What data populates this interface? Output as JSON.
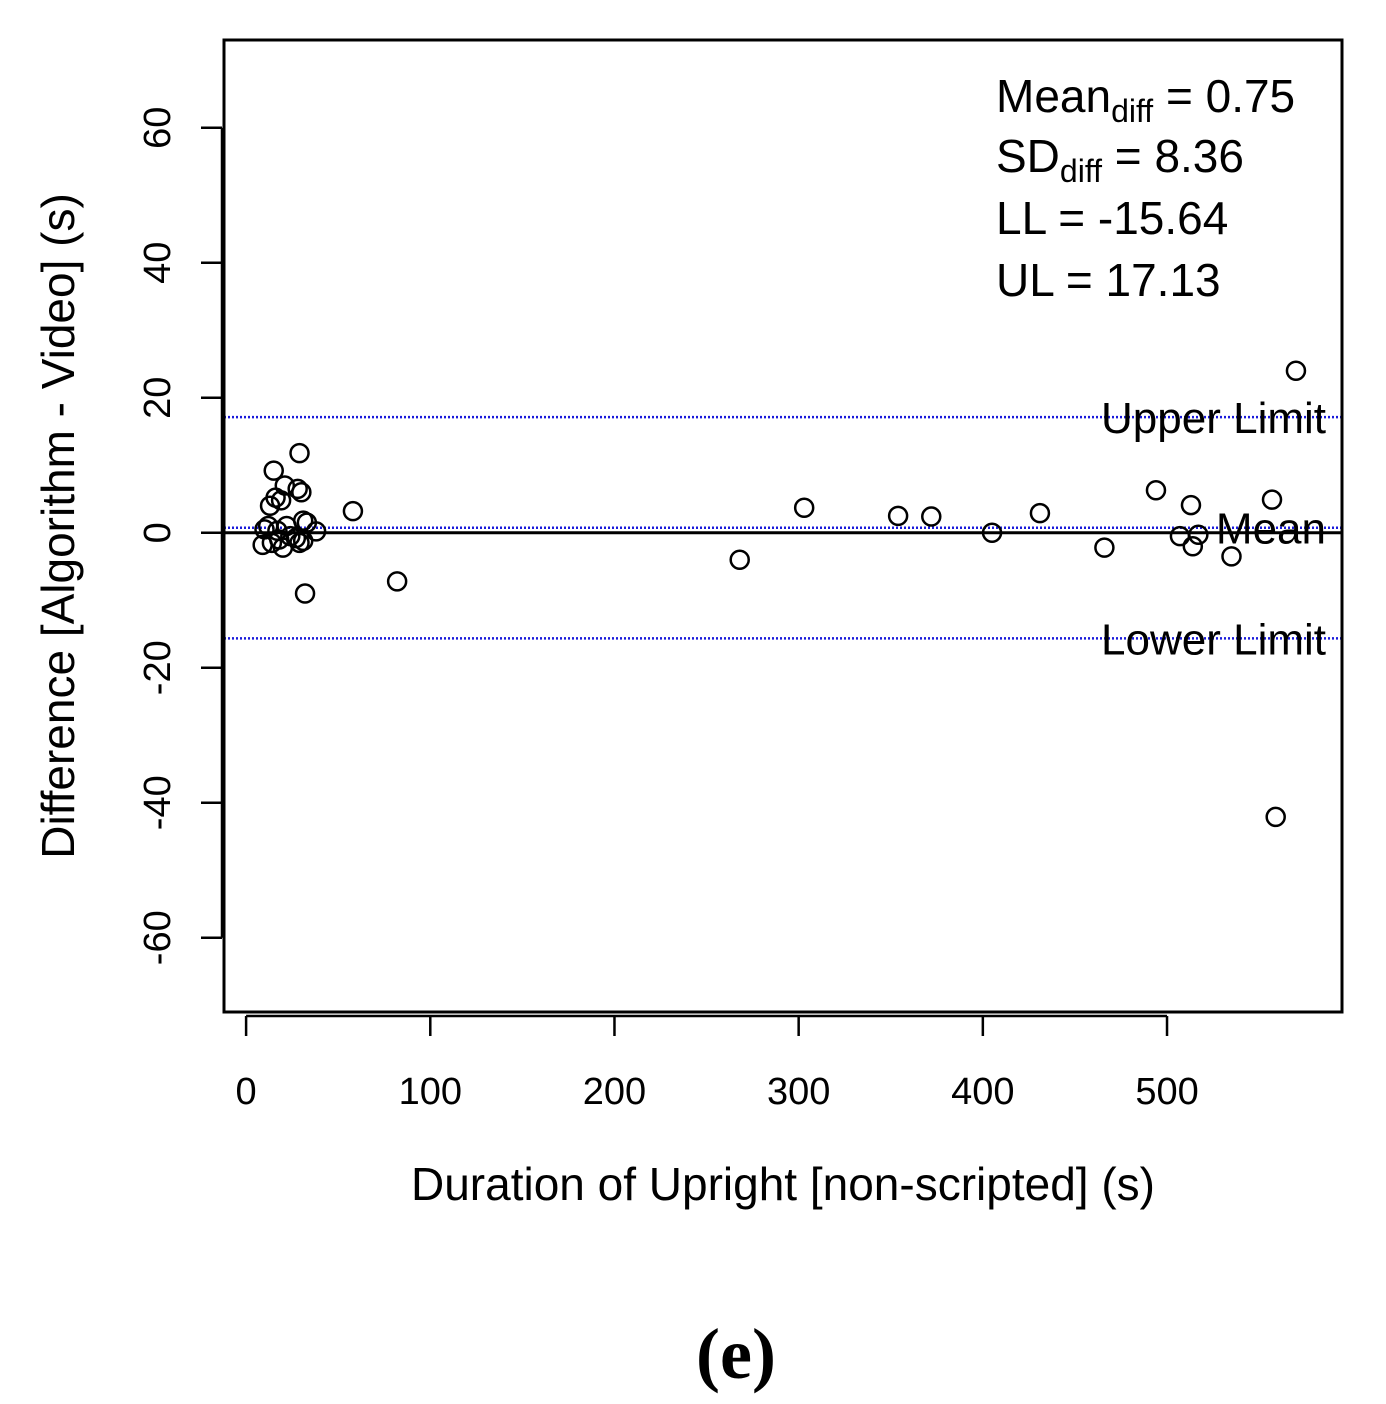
{
  "chart_data": {
    "type": "scatter",
    "xlabel": "Duration of Upright [non-scripted] (s)",
    "ylabel": "Difference [Algorithm - Video] (s)",
    "xlim": [
      -12,
      595
    ],
    "ylim": [
      -71,
      73
    ],
    "x_ticks": [
      0,
      100,
      200,
      300,
      400,
      500
    ],
    "y_ticks": [
      -60,
      -40,
      -20,
      0,
      20,
      40,
      60
    ],
    "zero_line": 0,
    "reference_lines": [
      {
        "name": "Upper Limit",
        "value": 17.13,
        "color": "#1a1adb",
        "style": "dotted"
      },
      {
        "name": "Mean",
        "value": 0.75,
        "color": "#1a1adb",
        "style": "dotted"
      },
      {
        "name": "Lower Limit",
        "value": -15.64,
        "color": "#1a1adb",
        "style": "dotted"
      }
    ],
    "stats": {
      "mean_label": "Mean",
      "mean_sub": "diff",
      "mean_value": "= 0.75",
      "sd_label": "SD",
      "sd_sub": "diff",
      "sd_value": "= 8.36",
      "ll_text": "LL = -15.64",
      "ul_text": "UL = 17.13"
    },
    "points": [
      {
        "x": 9,
        "y": -1.8
      },
      {
        "x": 10,
        "y": 0.5
      },
      {
        "x": 12,
        "y": 1.0
      },
      {
        "x": 13,
        "y": 4.0
      },
      {
        "x": 14,
        "y": -1.5
      },
      {
        "x": 15,
        "y": 9.2
      },
      {
        "x": 16,
        "y": 5.2
      },
      {
        "x": 17,
        "y": 0.3
      },
      {
        "x": 18,
        "y": -1.0
      },
      {
        "x": 19,
        "y": 4.8
      },
      {
        "x": 20,
        "y": -2.2
      },
      {
        "x": 21,
        "y": 7.0
      },
      {
        "x": 22,
        "y": 1.0
      },
      {
        "x": 24,
        "y": -0.5
      },
      {
        "x": 27,
        "y": -0.8
      },
      {
        "x": 28,
        "y": 6.5
      },
      {
        "x": 29,
        "y": 11.8
      },
      {
        "x": 29,
        "y": -1.5
      },
      {
        "x": 30,
        "y": 6.0
      },
      {
        "x": 31,
        "y": 1.8
      },
      {
        "x": 31,
        "y": -1.2
      },
      {
        "x": 32,
        "y": -9.0
      },
      {
        "x": 33,
        "y": 1.5
      },
      {
        "x": 38,
        "y": 0.2
      },
      {
        "x": 58,
        "y": 3.2
      },
      {
        "x": 82,
        "y": -7.2
      },
      {
        "x": 268,
        "y": -4.0
      },
      {
        "x": 303,
        "y": 3.7
      },
      {
        "x": 354,
        "y": 2.5
      },
      {
        "x": 372,
        "y": 2.4
      },
      {
        "x": 405,
        "y": 0.0
      },
      {
        "x": 431,
        "y": 2.9
      },
      {
        "x": 466,
        "y": -2.2
      },
      {
        "x": 494,
        "y": 6.3
      },
      {
        "x": 507,
        "y": -0.5
      },
      {
        "x": 513,
        "y": 4.1
      },
      {
        "x": 514,
        "y": -2.0
      },
      {
        "x": 517,
        "y": -0.3
      },
      {
        "x": 535,
        "y": -3.5
      },
      {
        "x": 557,
        "y": 4.9
      },
      {
        "x": 559,
        "y": -42.1
      },
      {
        "x": 570,
        "y": 24.0
      }
    ]
  },
  "caption": "(e)"
}
